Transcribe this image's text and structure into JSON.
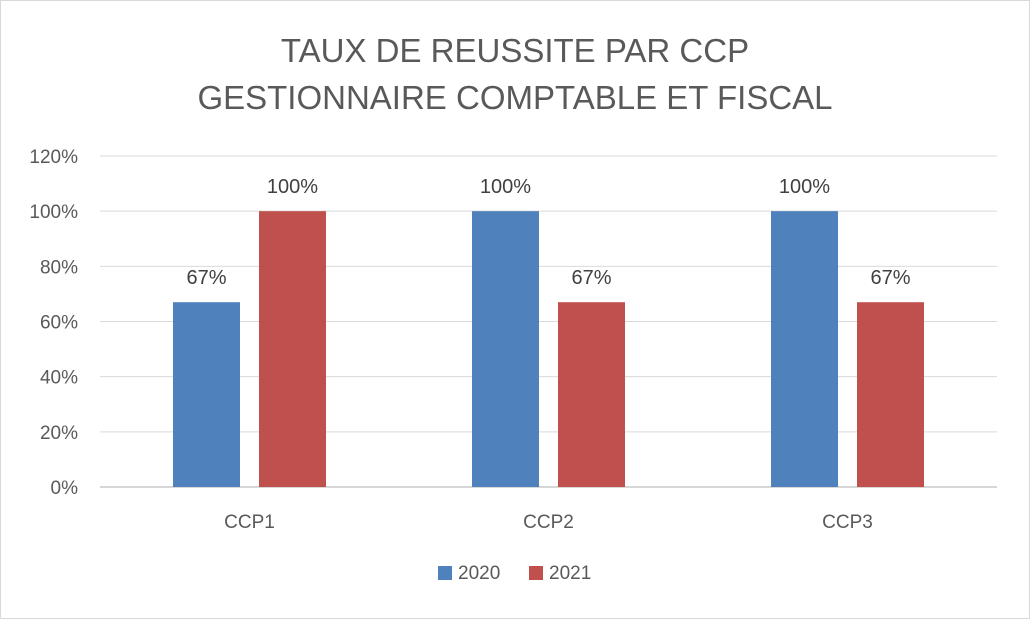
{
  "chart_data": {
    "type": "bar",
    "title": [
      "TAUX DE REUSSITE PAR CCP",
      "GESTIONNAIRE COMPTABLE ET FISCAL"
    ],
    "categories": [
      "CCP1",
      "CCP2",
      "CCP3"
    ],
    "series": [
      {
        "name": "2020",
        "values": [
          67,
          100,
          100
        ],
        "labels": [
          "67%",
          "100%",
          "100%"
        ],
        "color": "#4f81bd"
      },
      {
        "name": "2021",
        "values": [
          100,
          67,
          67
        ],
        "labels": [
          "100%",
          "67%",
          "67%"
        ],
        "color": "#c0504d"
      }
    ],
    "ylim": [
      0,
      120
    ],
    "yticks": [
      0,
      20,
      40,
      60,
      80,
      100,
      120
    ],
    "ytick_labels": [
      "0%",
      "20%",
      "40%",
      "60%",
      "80%",
      "100%",
      "120%"
    ],
    "grid": true,
    "legend": "bottom"
  }
}
